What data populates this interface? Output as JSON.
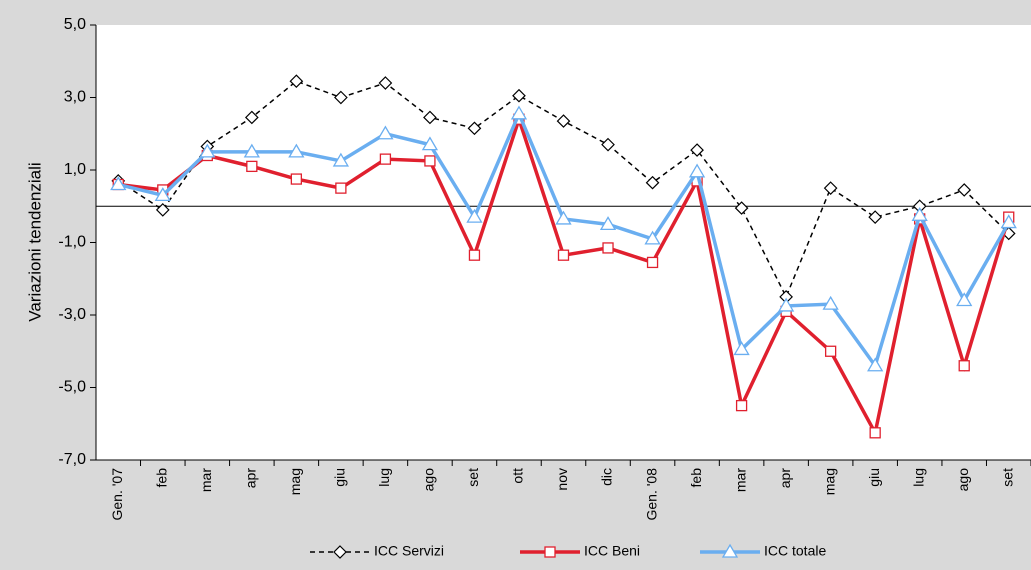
{
  "chart_data": {
    "type": "line",
    "y_label": "Variazioni tendenziali",
    "categories": [
      "Gen. '07",
      "feb",
      "mar",
      "apr",
      "mag",
      "giu",
      "lug",
      "ago",
      "set",
      "ott",
      "nov",
      "dic",
      "Gen. '08",
      "feb",
      "mar",
      "apr",
      "mag",
      "giu",
      "lug",
      "ago",
      "set"
    ],
    "series": [
      {
        "name": "ICC Servizi",
        "color": "#000000",
        "marker": "diamond",
        "dash": true,
        "values": [
          0.7,
          -0.1,
          1.65,
          2.45,
          3.45,
          3.0,
          3.4,
          2.45,
          2.15,
          3.05,
          2.35,
          1.7,
          0.65,
          1.55,
          -0.05,
          -2.5,
          0.5,
          -0.3,
          0.0,
          0.45,
          -0.75
        ]
      },
      {
        "name": "ICC Beni",
        "color": "#e0202e",
        "marker": "square",
        "dash": false,
        "values": [
          0.6,
          0.45,
          1.4,
          1.1,
          0.75,
          0.5,
          1.3,
          1.25,
          -1.35,
          2.4,
          -1.35,
          -1.15,
          -1.55,
          0.7,
          -5.5,
          -2.9,
          -4.0,
          -6.25,
          -0.35,
          -4.4,
          -0.3
        ]
      },
      {
        "name": "ICC totale",
        "color": "#6aaef0",
        "marker": "triangle",
        "dash": false,
        "values": [
          0.6,
          0.3,
          1.5,
          1.5,
          1.5,
          1.25,
          2.0,
          1.7,
          -0.3,
          2.55,
          -0.35,
          -0.5,
          -0.9,
          0.95,
          -3.95,
          -2.75,
          -2.7,
          -4.4,
          -0.25,
          -2.6,
          -0.45
        ]
      }
    ],
    "ylim": [
      -7,
      5
    ],
    "yticks": [
      {
        "value": -7,
        "label": "-7,0"
      },
      {
        "value": -5,
        "label": "-5,0"
      },
      {
        "value": -3,
        "label": "-3,0"
      },
      {
        "value": -1,
        "label": "-1,0"
      },
      {
        "value": 1,
        "label": "1,0"
      },
      {
        "value": 3,
        "label": "3,0"
      },
      {
        "value": 5,
        "label": "5,0"
      }
    ],
    "legend": "bottom"
  }
}
